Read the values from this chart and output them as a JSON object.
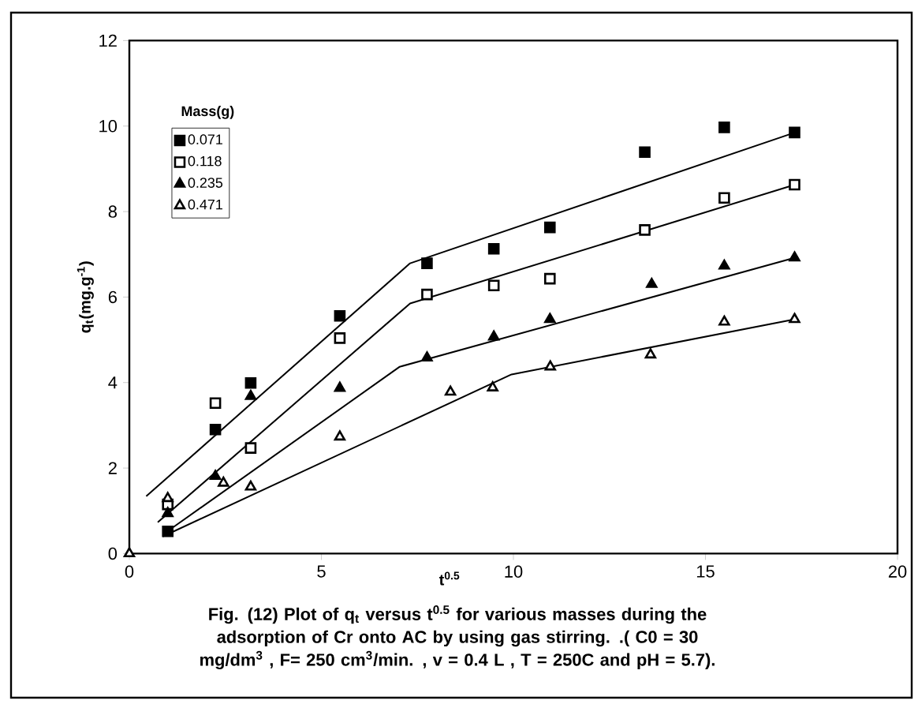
{
  "chart_data": {
    "type": "scatter",
    "xlabel": "t$^{0.5}$",
    "ylabel": "q$_{t}$(mg.g$^{-1}$)",
    "legend_title": "Mass(g)",
    "annotations": [
      "Fig. (12) Plot of q$_{t}$ versus t$^{0.5}$ for various masses during the adsorption of Cr onto AC by using gas stirring. .( C0 = 30 mg/dm$^{3}$ , F= 250 cm$^{3}$/min. , v = 0.4 L , T = 250C and pH = 5.7)."
    ],
    "xlim": [
      0,
      20
    ],
    "ylim": [
      0,
      12
    ],
    "xticks": [
      0,
      5,
      10,
      15,
      20
    ],
    "yticks": [
      0,
      2,
      4,
      6,
      8,
      10,
      12
    ],
    "grid": false,
    "legend": "top left",
    "series": [
      {
        "type": "line",
        "color": "#000000",
        "marker": "none",
        "line_style": "solid",
        "x": [
          0.44,
          7.31,
          17.33
        ],
        "values": [
          1.34,
          6.79,
          9.85
        ]
      },
      {
        "type": "line",
        "color": "#000000",
        "marker": "none",
        "line_style": "solid",
        "x": [
          0.74,
          7.31,
          17.33
        ],
        "values": [
          0.73,
          5.85,
          8.63
        ]
      },
      {
        "type": "line",
        "color": "#000000",
        "marker": "none",
        "line_style": "solid",
        "x": [
          0.99,
          7.04,
          17.33
        ],
        "values": [
          0.52,
          4.37,
          6.92
        ]
      },
      {
        "type": "line",
        "color": "#000000",
        "marker": "none",
        "line_style": "solid",
        "x": [
          0.87,
          9.95,
          17.33
        ],
        "values": [
          0.4,
          4.19,
          5.48
        ]
      },
      {
        "name": "0.071",
        "color": "#000000",
        "marker": "square",
        "x": [
          1,
          2.24,
          3.16,
          5.48,
          7.75,
          9.49,
          10.95,
          13.42,
          15.49,
          17.32
        ],
        "values": [
          0.52,
          2.9,
          3.99,
          5.56,
          6.79,
          7.13,
          7.63,
          9.39,
          9.97,
          9.85
        ]
      },
      {
        "name": "0.118",
        "color": "#ffffff",
        "marker": "square",
        "x": [
          1,
          2.24,
          3.16,
          5.48,
          7.75,
          9.49,
          10.95,
          13.42,
          15.49,
          17.32
        ],
        "values": [
          1.15,
          3.52,
          2.47,
          5.04,
          6.06,
          6.27,
          6.43,
          7.57,
          8.32,
          8.63
        ]
      },
      {
        "name": "0.235",
        "color": "#000000",
        "marker": "triangle",
        "x": [
          1,
          2.24,
          3.16,
          5.48,
          7.75,
          9.49,
          10.95,
          13.6,
          15.49,
          17.32
        ],
        "values": [
          0.94,
          1.81,
          3.68,
          3.87,
          4.58,
          5.07,
          5.48,
          6.3,
          6.73,
          6.92
        ]
      },
      {
        "name": "0.471",
        "color": "#ffffff",
        "marker": "triangle",
        "x": [
          0,
          1,
          2.45,
          3.16,
          5.48,
          8.36,
          9.46,
          10.96,
          13.57,
          15.49,
          17.32
        ],
        "values": [
          0,
          1.29,
          1.65,
          1.56,
          2.73,
          3.78,
          3.88,
          4.37,
          4.65,
          5.42,
          5.48
        ]
      }
    ]
  }
}
